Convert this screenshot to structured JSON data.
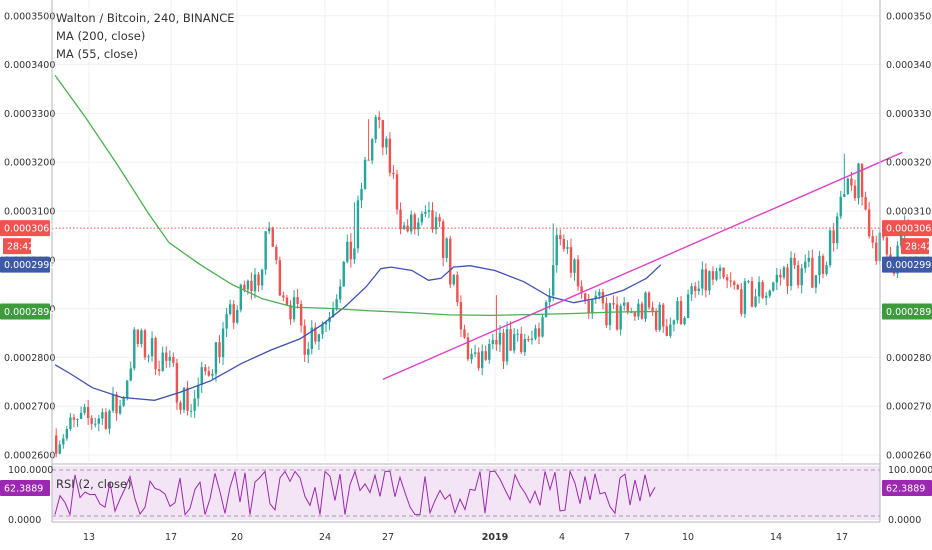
{
  "header": {
    "title": "Walton / Bitcoin, 240, BINANCE",
    "ma200_label": "MA (200, close)",
    "ma55_label": "MA (55, close)"
  },
  "rsi": {
    "label": "RSI (2, close)",
    "value_tag": "62.3889",
    "ticks": [
      "100.0000",
      "0.0000"
    ]
  },
  "price_tags": {
    "last_price": "0.0003065",
    "countdown": "28:42",
    "ma55_value": "0.0002990",
    "ma200_value": "0.0002894"
  },
  "colors": {
    "bull": "#26a69a",
    "bear": "#ef5350",
    "ma55": "#3f51b5",
    "ma200": "#4caf50",
    "trendline": "#e040c8",
    "rsi_line": "#9c27b0",
    "rsi_fill": "#f3e5f5",
    "last_tag": "#ef5350",
    "ma55_tag": "#3c5aa8",
    "ma200_tag": "#3d9a3d"
  },
  "chart_data": {
    "type": "candlestick",
    "title": "Walton / Bitcoin, 240, BINANCE",
    "y_ticks": [
      "0.0002600",
      "0.0002700",
      "0.0002800",
      "0.0002900",
      "0.0003000",
      "0.0003100",
      "0.0003200",
      "0.0003300",
      "0.0003400",
      "0.0003500"
    ],
    "ylim": [
      0.000258,
      0.000358
    ],
    "x_ticks": [
      "13",
      "17",
      "20",
      "24",
      "27",
      "2019",
      "4",
      "7",
      "10",
      "14",
      "17"
    ],
    "last_price": 0.0003065,
    "series": [
      {
        "name": "MA (55, close)",
        "points": [
          [
            0,
            0.0002785
          ],
          [
            8,
            0.0002765
          ],
          [
            18,
            0.0002738
          ],
          [
            32,
            0.0002718
          ],
          [
            48,
            0.0002712
          ],
          [
            60,
            0.0002728
          ],
          [
            75,
            0.0002752
          ],
          [
            90,
            0.0002788
          ],
          [
            104,
            0.0002815
          ],
          [
            118,
            0.0002838
          ],
          [
            128,
            0.0002865
          ],
          [
            140,
            0.0002905
          ],
          [
            150,
            0.0002945
          ],
          [
            157,
            0.0002982
          ],
          [
            162,
            0.0002985
          ],
          [
            172,
            0.0002978
          ],
          [
            180,
            0.0002958
          ],
          [
            186,
            0.0002962
          ],
          [
            192,
            0.0002985
          ],
          [
            200,
            0.0002988
          ],
          [
            212,
            0.0002978
          ],
          [
            226,
            0.0002955
          ],
          [
            238,
            0.0002925
          ],
          [
            250,
            0.0002912
          ],
          [
            262,
            0.0002922
          ],
          [
            274,
            0.0002938
          ],
          [
            285,
            0.0002962
          ],
          [
            292,
            0.000299
          ]
        ]
      },
      {
        "name": "MA (200, close)",
        "points": [
          [
            0,
            0.0003378
          ],
          [
            15,
            0.000329
          ],
          [
            30,
            0.0003195
          ],
          [
            45,
            0.0003095
          ],
          [
            55,
            0.0003035
          ],
          [
            70,
            0.000299
          ],
          [
            85,
            0.000295
          ],
          [
            100,
            0.000292
          ],
          [
            115,
            0.0002903
          ],
          [
            135,
            0.00029
          ],
          [
            150,
            0.0002896
          ],
          [
            170,
            0.0002892
          ],
          [
            190,
            0.0002887
          ],
          [
            210,
            0.0002886
          ],
          [
            230,
            0.0002888
          ],
          [
            250,
            0.000289
          ],
          [
            270,
            0.0002893
          ],
          [
            292,
            0.0002894
          ]
        ]
      }
    ],
    "trendline": [
      [
        158,
        0.0002755
      ],
      [
        370,
        0.000322
      ]
    ],
    "rsi_last": 62.3889
  }
}
